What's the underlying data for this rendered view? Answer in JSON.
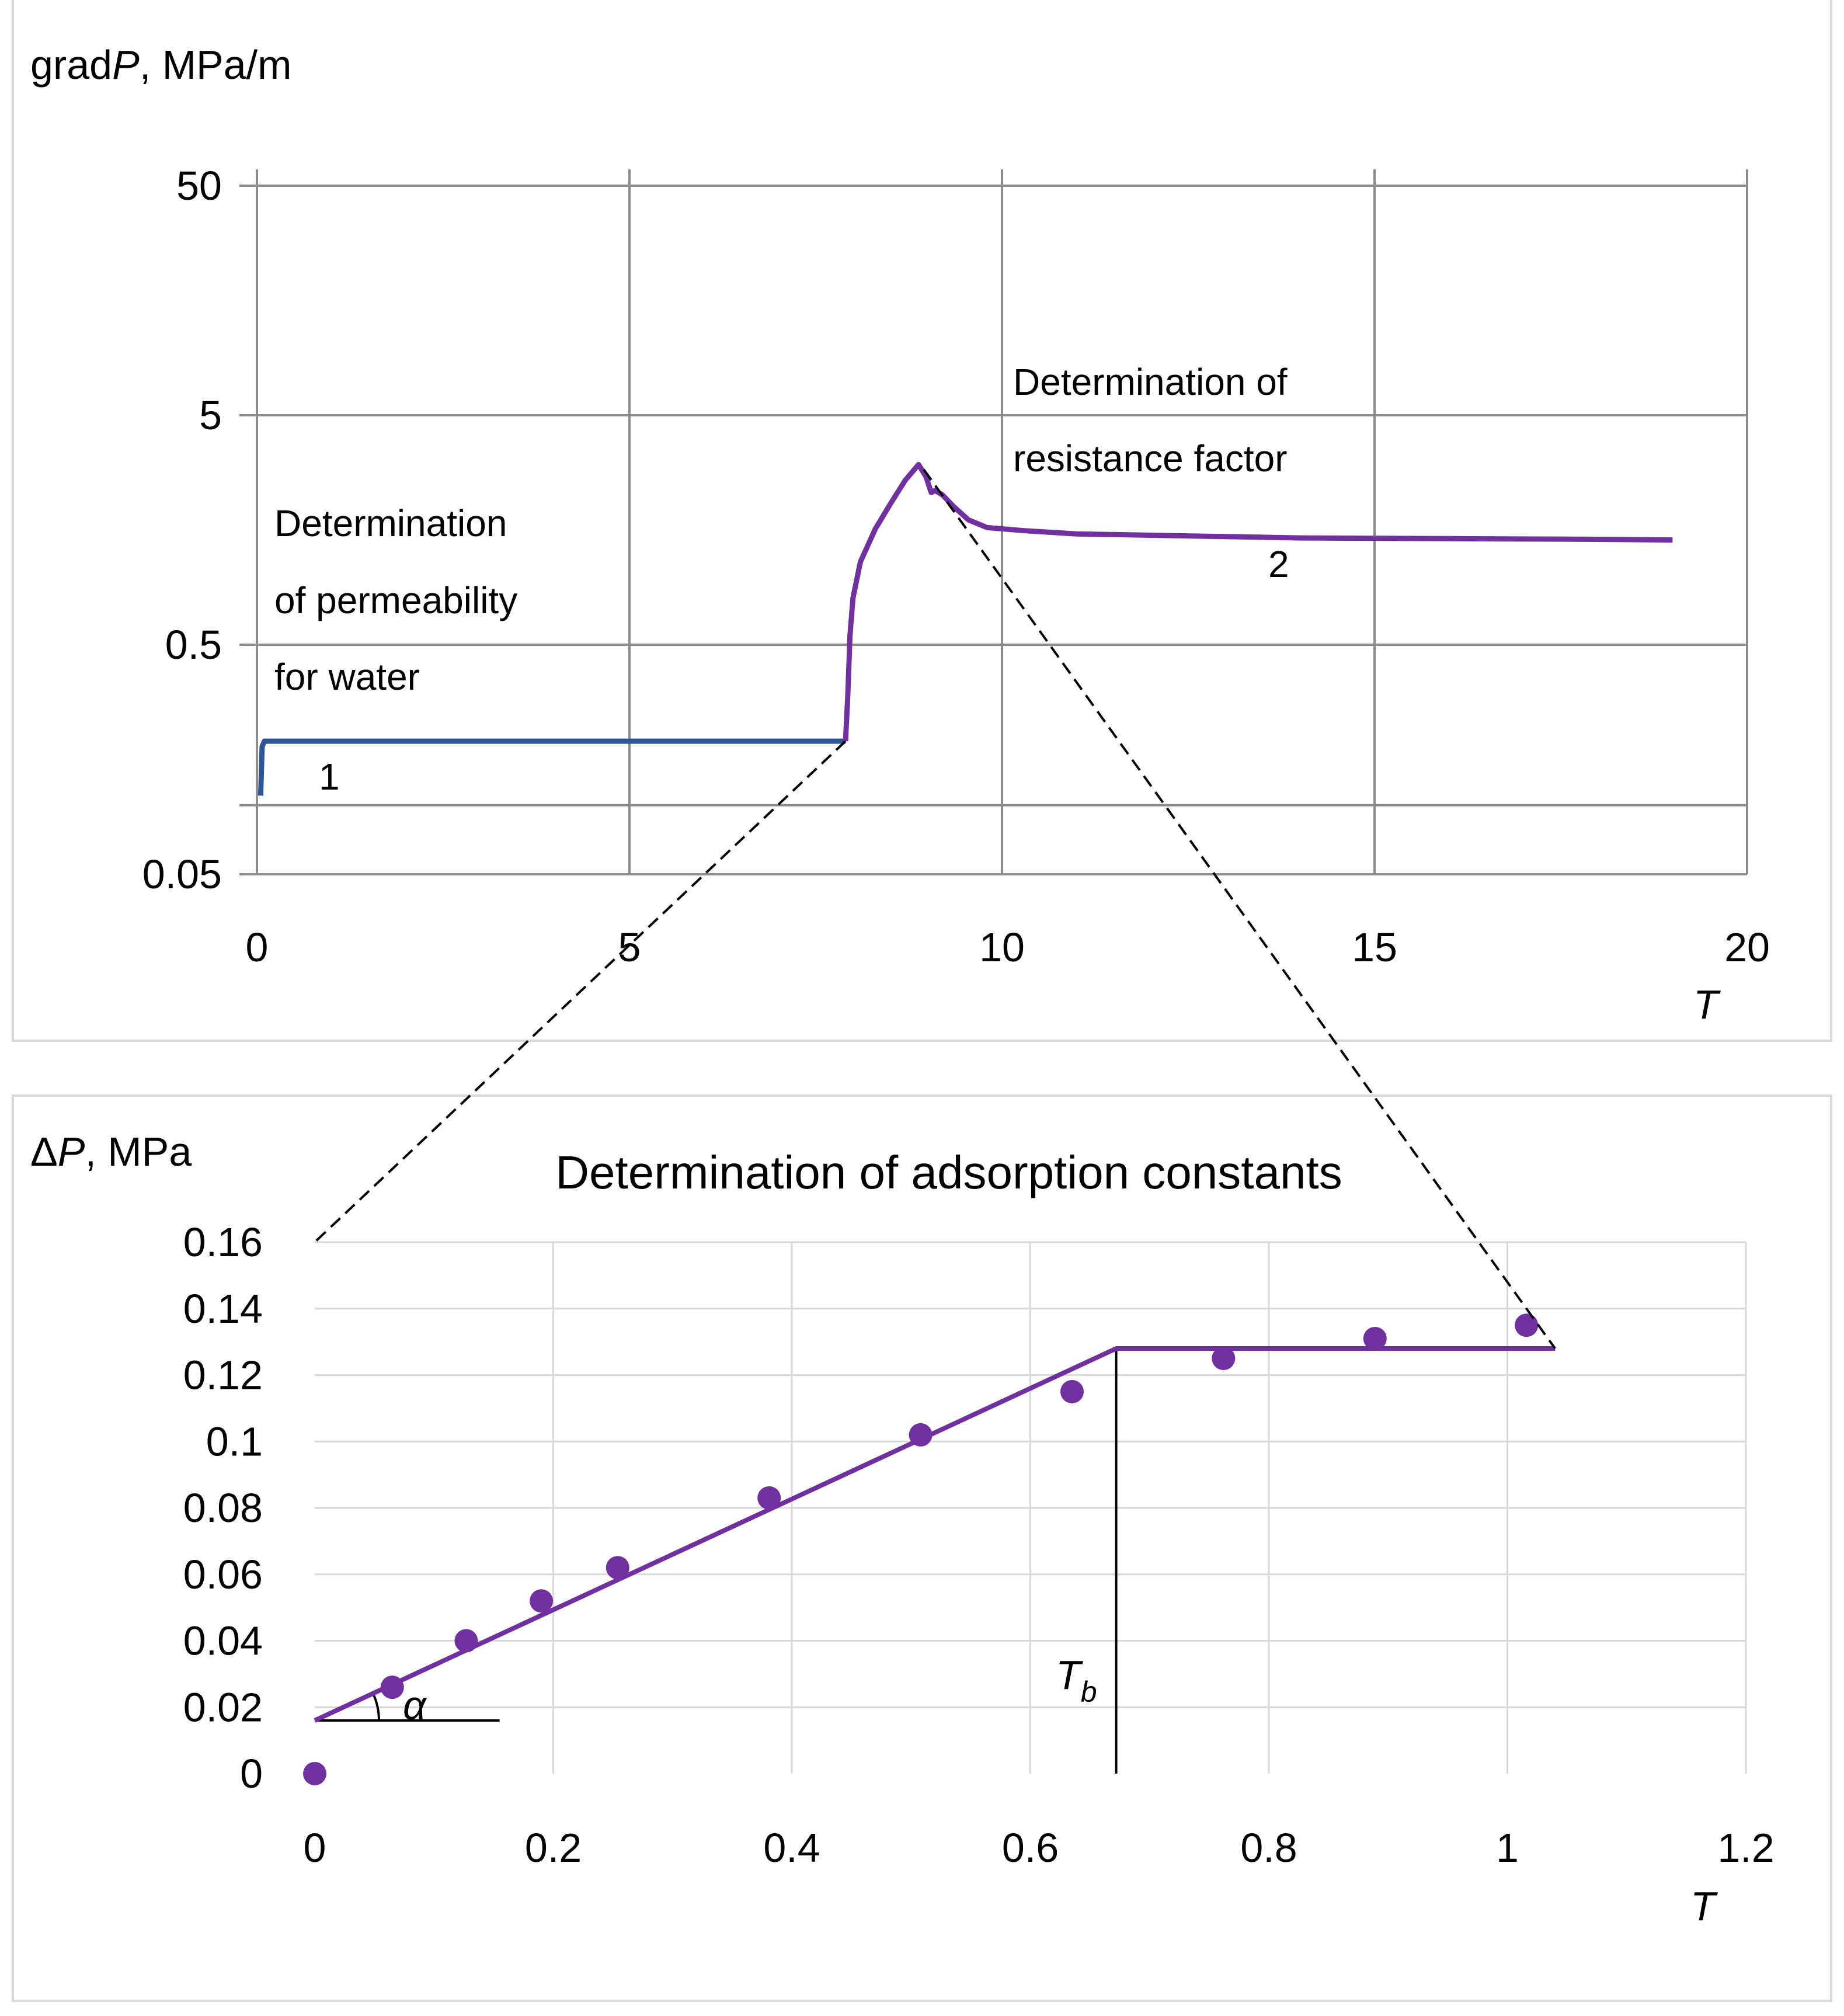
{
  "chart_data": [
    {
      "type": "line",
      "ylabel_prefix": "grad",
      "ylabel_var": "P",
      "ylabel_unit": ", MPa/m",
      "xlabel": "T",
      "yscale": "log",
      "ylim": [
        0.05,
        50
      ],
      "xlim": [
        0,
        20
      ],
      "yticks": [
        "50",
        "5",
        "0.5",
        "0.05"
      ],
      "xticks": [
        "0",
        "5",
        "10",
        "15",
        "20"
      ],
      "annotations": {
        "permeability": [
          "Determination",
          "of permeability",
          "for water"
        ],
        "resistance": [
          "Determination of",
          "resistance factor"
        ],
        "curve1_label": "1",
        "curve2_label": "2"
      },
      "series": [
        {
          "name": "1",
          "color": "#2e5597",
          "x": [
            0.05,
            0.07,
            0.1,
            0.5,
            2,
            4,
            6,
            7.5,
            7.9
          ],
          "y": [
            0.11,
            0.18,
            0.19,
            0.19,
            0.19,
            0.19,
            0.19,
            0.19,
            0.19
          ]
        },
        {
          "name": "2",
          "color": "#7030a0",
          "x": [
            7.9,
            7.93,
            7.96,
            8.0,
            8.1,
            8.3,
            8.5,
            8.7,
            8.88,
            8.98,
            9.05,
            9.1,
            9.2,
            9.35,
            9.55,
            9.8,
            10.3,
            11,
            12,
            14,
            16,
            18,
            19
          ],
          "y": [
            0.19,
            0.3,
            0.55,
            0.8,
            1.15,
            1.6,
            2.05,
            2.6,
            3.05,
            2.7,
            2.3,
            2.35,
            2.25,
            2.0,
            1.75,
            1.62,
            1.57,
            1.52,
            1.5,
            1.46,
            1.45,
            1.44,
            1.43
          ]
        }
      ]
    },
    {
      "type": "scatter",
      "title": "Determination of adsorption constants",
      "ylabel_prefix": "Δ",
      "ylabel_var": "P",
      "ylabel_unit": ", MPa",
      "xlabel": "T",
      "xlim": [
        0,
        1.2
      ],
      "ylim": [
        0,
        0.16
      ],
      "yticks": [
        "0.16",
        "0.14",
        "0.12",
        "0.1",
        "0.08",
        "0.06",
        "0.04",
        "0.02",
        "0"
      ],
      "xticks": [
        "0",
        "0.2",
        "0.4",
        "0.6",
        "0.8",
        "1",
        "1.2"
      ],
      "points_color": "#7030a0",
      "points": {
        "x": [
          0,
          0.065,
          0.127,
          0.19,
          0.254,
          0.381,
          0.508,
          0.635,
          0.762,
          0.889,
          1.016
        ],
        "y": [
          0,
          0.026,
          0.04,
          0.052,
          0.062,
          0.083,
          0.102,
          0.115,
          0.125,
          0.131,
          0.135
        ]
      },
      "fit_line": {
        "x": [
          0,
          0.672,
          0.672,
          1.04
        ],
        "y": [
          0.016,
          0.128,
          0.128,
          0.128
        ]
      },
      "Tb": 0.672,
      "tb_label_main": "T",
      "tb_label_sub": "b",
      "alpha_label": "α"
    }
  ]
}
